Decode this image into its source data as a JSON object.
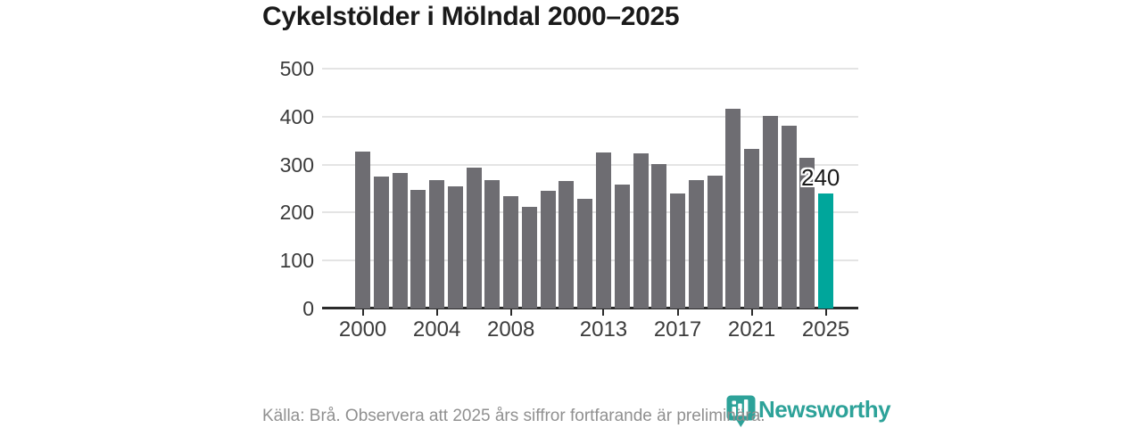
{
  "title": "Cykelstölder i Mölndal 2000–2025",
  "source_note": "Källa: Brå. Observera att 2025 års siffror fortfarande är preliminära.",
  "brand": {
    "name": "Newsworthy",
    "logo_icon": "bar-chart-pin-icon",
    "color": "#2da299"
  },
  "colors": {
    "bar": "#6e6d72",
    "highlight": "#00a69b",
    "grid": "#e4e4e4",
    "axis": "#2b2b2b",
    "label": "#3b3b3b",
    "title": "#1a1a1a",
    "source": "#909090"
  },
  "chart_data": {
    "type": "bar",
    "title": "Cykelstölder i Mölndal 2000–2025",
    "categories": [
      2000,
      2001,
      2002,
      2003,
      2004,
      2005,
      2006,
      2007,
      2008,
      2009,
      2010,
      2011,
      2012,
      2013,
      2014,
      2015,
      2016,
      2017,
      2018,
      2019,
      2020,
      2021,
      2022,
      2023,
      2024,
      2025
    ],
    "values": [
      327,
      275,
      282,
      248,
      267,
      254,
      293,
      267,
      235,
      212,
      245,
      266,
      228,
      325,
      258,
      323,
      301,
      240,
      267,
      277,
      416,
      332,
      401,
      381,
      314,
      240
    ],
    "x_tick_labels": [
      "2000",
      "2004",
      "2008",
      "2013",
      "2017",
      "2021",
      "2025"
    ],
    "y_ticks": [
      0,
      100,
      200,
      300,
      400,
      500
    ],
    "ylim": [
      0,
      500
    ],
    "grid": true,
    "legend": false,
    "highlight_index": 25,
    "highlight_label": "240",
    "xlabel": "",
    "ylabel": ""
  }
}
